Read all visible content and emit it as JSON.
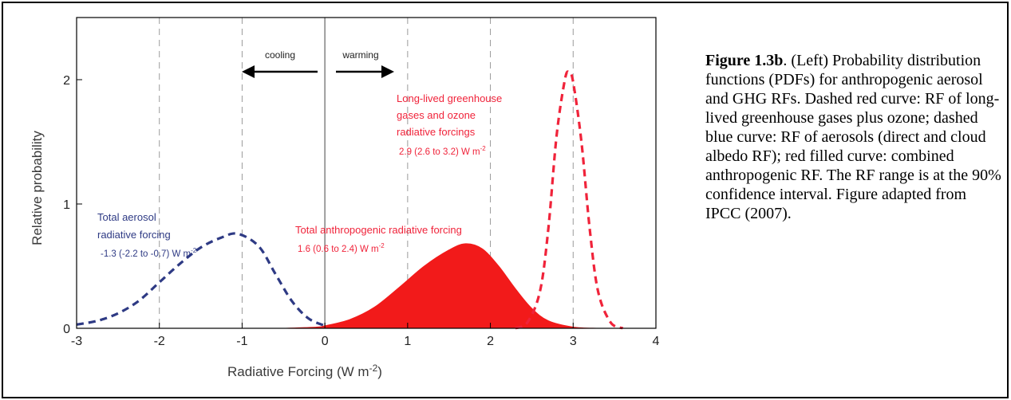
{
  "chart_data": {
    "type": "line",
    "xlabel": "Radiative Forcing  (W m-2)",
    "ylabel": "Relative probability",
    "xlim": [
      -3,
      4
    ],
    "ylim": [
      0,
      2.5
    ],
    "x_ticks": [
      "-3",
      "-2",
      "-1",
      "0",
      "1",
      "2",
      "3",
      "4"
    ],
    "y_ticks": [
      "0",
      "1",
      "2"
    ],
    "grid": "dashed vertical lines at integer x",
    "direction_labels": {
      "cooling": "cooling",
      "warming": "warming"
    },
    "series": [
      {
        "label_lines": [
          "Total aerosol",
          "radiative forcing"
        ],
        "range_text": "-1.3 (-2.2 to -0.7) W m",
        "range_sup": "-2",
        "style": "dashed",
        "color": "#2e3a84",
        "mean": -1.05,
        "peak": 0.76,
        "x": [
          -3.0,
          -2.75,
          -2.5,
          -2.25,
          -2.0,
          -1.75,
          -1.5,
          -1.25,
          -1.05,
          -0.8,
          -0.6,
          -0.4,
          -0.2,
          0.0
        ],
        "y": [
          0.03,
          0.06,
          0.12,
          0.22,
          0.37,
          0.52,
          0.65,
          0.73,
          0.76,
          0.66,
          0.44,
          0.22,
          0.08,
          0.02
        ]
      },
      {
        "label_lines": [
          "Long-lived greenhouse",
          "gases and ozone",
          "radiative forcings"
        ],
        "range_text": "2.9 (2.6 to 3.2) W m",
        "range_sup": "-2",
        "style": "dashed",
        "color": "#f0233a",
        "mean": 2.95,
        "peak": 2.06,
        "x": [
          2.3,
          2.45,
          2.6,
          2.7,
          2.8,
          2.9,
          2.95,
          3.0,
          3.1,
          3.2,
          3.3,
          3.45,
          3.6
        ],
        "y": [
          0.0,
          0.05,
          0.3,
          0.8,
          1.55,
          2.0,
          2.06,
          1.98,
          1.5,
          0.8,
          0.3,
          0.05,
          0.0
        ]
      },
      {
        "label_lines": [
          "Total anthropogenic radiative forcing"
        ],
        "range_text": "1.6 (0.6 to 2.4) W m",
        "range_sup": "-2",
        "style": "filled",
        "color": "#f21a1a",
        "mean": 1.7,
        "peak": 0.68,
        "x": [
          -0.5,
          -0.1,
          0.0,
          0.3,
          0.6,
          0.9,
          1.2,
          1.5,
          1.7,
          1.9,
          2.1,
          2.3,
          2.5,
          2.7,
          3.0,
          3.3
        ],
        "y": [
          0.0,
          0.01,
          0.02,
          0.07,
          0.17,
          0.33,
          0.5,
          0.63,
          0.68,
          0.64,
          0.5,
          0.32,
          0.16,
          0.06,
          0.01,
          0.0
        ]
      }
    ]
  },
  "caption": {
    "title": "Figure 1.3b",
    "body": ". (Left) Probability distribution functions (PDFs) for anthropogenic aerosol and GHG RFs. Dashed red curve: RF of long-lived greenhouse gases plus ozone; dashed blue curve: RF of aerosols (direct and cloud albedo RF); red filled curve: combined anthropogenic RF. The RF range is at the 90% confidence interval. Figure adapted from IPCC (2007)."
  }
}
